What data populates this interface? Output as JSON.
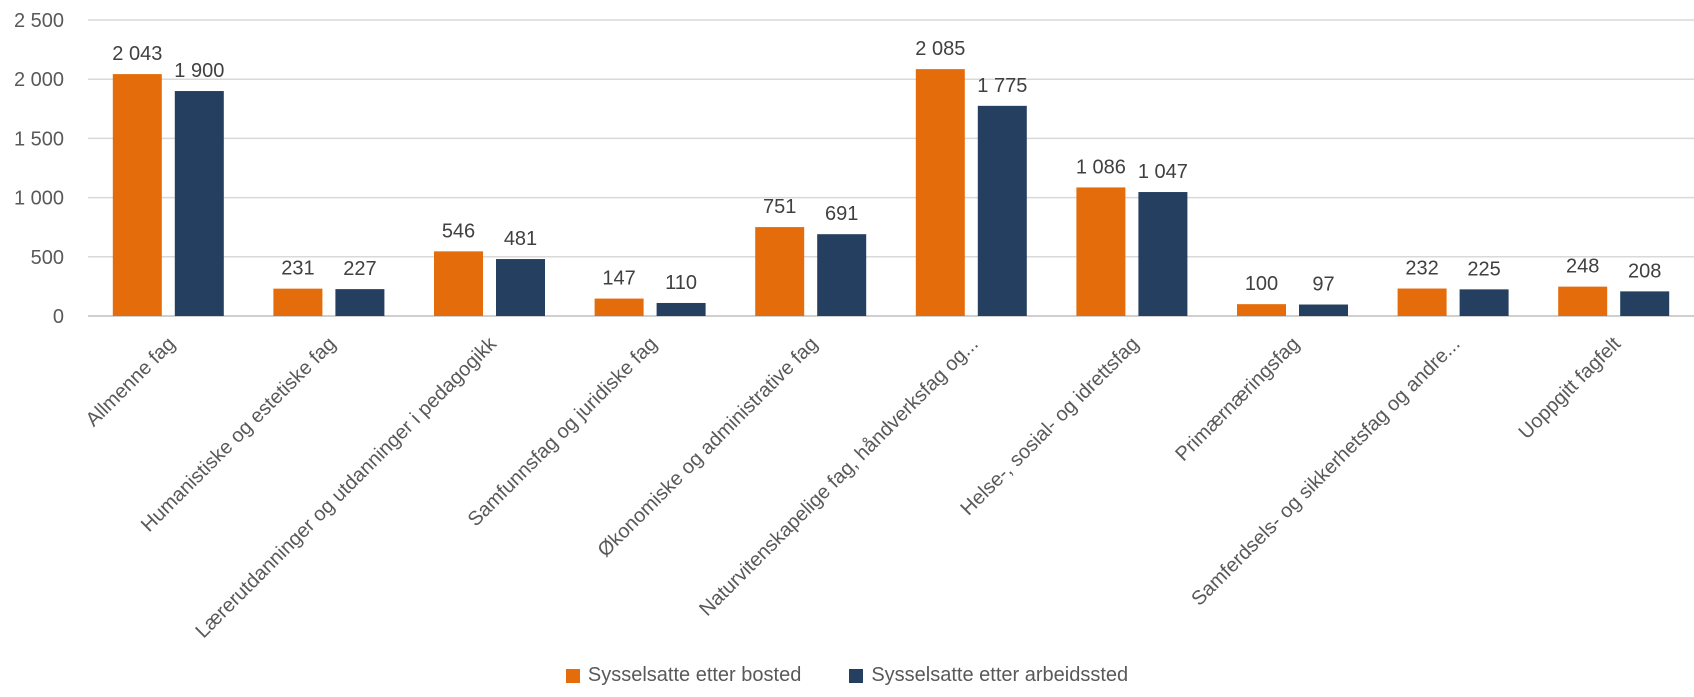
{
  "chart_data": {
    "type": "bar",
    "title": "",
    "xlabel": "",
    "ylabel": "",
    "ylim": [
      0,
      2500
    ],
    "yticks": [
      0,
      500,
      1000,
      1500,
      2000,
      2500
    ],
    "ytick_labels": [
      "0",
      "500",
      "1 000",
      "1 500",
      "2 000",
      "2 500"
    ],
    "grid": true,
    "legend_position": "bottom",
    "categories": [
      "Allmenne fag",
      "Humanistiske og estetiske fag",
      "Lærerutdanninger og utdanninger i pedagogikk",
      "Samfunnsfag og juridiske fag",
      "Økonomiske og administrative fag",
      "Naturvitenskapelige fag, håndverksfag og...",
      "Helse-, sosial- og idrettsfag",
      "Primærnæringsfag",
      "Samferdsels- og sikkerhetsfag og andre...",
      "Uoppgitt fagfelt"
    ],
    "series": [
      {
        "name": "Sysselsatte etter bosted",
        "color": "#E46C0A",
        "values": [
          2043,
          231,
          546,
          147,
          751,
          2085,
          1086,
          100,
          232,
          248
        ],
        "labels": [
          "2 043",
          "231",
          "546",
          "147",
          "751",
          "2 085",
          "1 086",
          "100",
          "232",
          "248"
        ]
      },
      {
        "name": "Sysselsatte etter arbeidssted",
        "color": "#243F60",
        "values": [
          1900,
          227,
          481,
          110,
          691,
          1775,
          1047,
          97,
          225,
          208
        ],
        "labels": [
          "1 900",
          "227",
          "481",
          "110",
          "691",
          "1 775",
          "1 047",
          "97",
          "225",
          "208"
        ]
      }
    ]
  },
  "legend": {
    "series_0": "Sysselsatte etter bosted",
    "series_1": "Sysselsatte etter arbeidssted"
  }
}
